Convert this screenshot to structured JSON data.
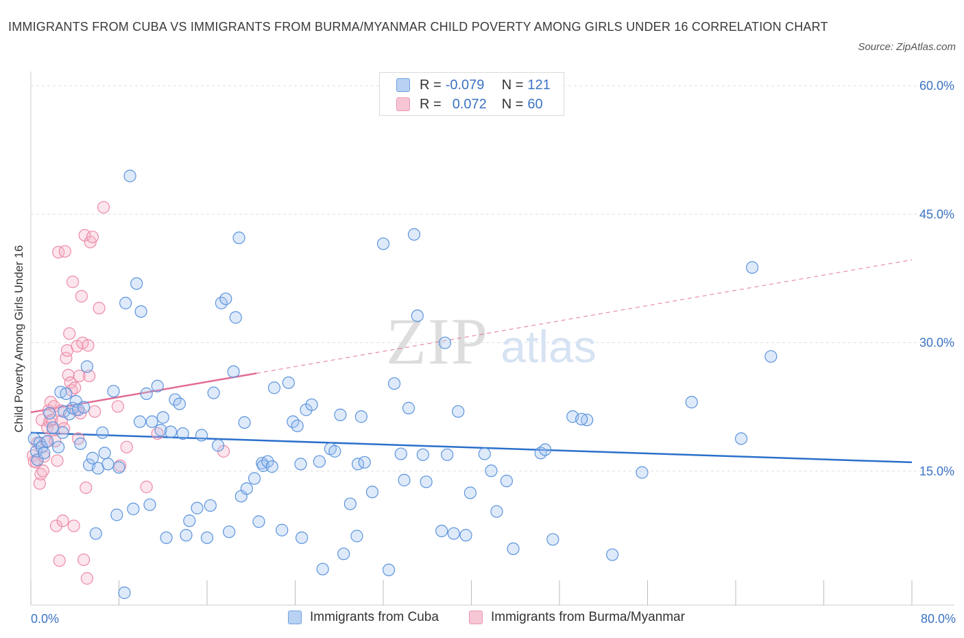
{
  "title": "IMMIGRANTS FROM CUBA VS IMMIGRANTS FROM BURMA/MYANMAR CHILD POVERTY AMONG GIRLS UNDER 16 CORRELATION CHART",
  "source": "Source: ZipAtlas.com",
  "watermark": {
    "zip": "ZIP",
    "atlas": "atlas"
  },
  "legend": {
    "r_label": "R =",
    "n_label": "N =",
    "series": [
      {
        "r": "-0.079",
        "n": "121"
      },
      {
        "r": "0.072",
        "n": "60"
      }
    ]
  },
  "chart_data": {
    "type": "scatter",
    "title": "IMMIGRANTS FROM CUBA VS IMMIGRANTS FROM BURMA/MYANMAR CHILD POVERTY AMONG GIRLS UNDER 16 CORRELATION CHART",
    "xlabel": "",
    "ylabel": "Child Poverty Among Girls Under 16",
    "xlim": [
      0,
      80
    ],
    "ylim": [
      0,
      60
    ],
    "x_ticks": [
      0,
      8,
      16,
      24,
      32,
      40,
      48,
      56,
      64,
      72,
      80
    ],
    "x_tick_labels": [
      "0.0%",
      "80.0%"
    ],
    "y_ticks": [
      15,
      30,
      45,
      60
    ],
    "y_tick_labels": [
      "15.0%",
      "30.0%",
      "45.0%",
      "60.0%"
    ],
    "grid": true,
    "legend_position": "top-center",
    "colors": {
      "cuba": "#5b93dc",
      "burma": "#ec8aa6",
      "cuba_line": "#2a6fcb",
      "burma_line": "#e26b92",
      "axis_text": "#3b73c4"
    },
    "series": [
      {
        "name": "Immigrants from Cuba",
        "r": -0.079,
        "n": 121,
        "trend": {
          "x": [
            0,
            80
          ],
          "y": [
            19.7,
            16.2
          ]
        },
        "points": [
          [
            0.3,
            19.0
          ],
          [
            0.5,
            17.5
          ],
          [
            0.6,
            16.5
          ],
          [
            0.8,
            18.5
          ],
          [
            1.0,
            18.0
          ],
          [
            1.2,
            17.3
          ],
          [
            1.5,
            18.7
          ],
          [
            1.7,
            22.0
          ],
          [
            2.0,
            20.3
          ],
          [
            2.5,
            18.0
          ],
          [
            2.7,
            24.5
          ],
          [
            2.9,
            19.7
          ],
          [
            3.0,
            22.2
          ],
          [
            3.2,
            24.3
          ],
          [
            3.5,
            21.9
          ],
          [
            3.8,
            22.6
          ],
          [
            4.1,
            23.4
          ],
          [
            4.3,
            22.4
          ],
          [
            4.5,
            18.4
          ],
          [
            4.8,
            22.7
          ],
          [
            5.1,
            27.5
          ],
          [
            5.3,
            15.9
          ],
          [
            5.6,
            16.7
          ],
          [
            5.9,
            7.8
          ],
          [
            6.1,
            15.5
          ],
          [
            6.5,
            19.7
          ],
          [
            6.7,
            17.3
          ],
          [
            7.0,
            16.0
          ],
          [
            7.5,
            24.6
          ],
          [
            7.8,
            10.0
          ],
          [
            8.0,
            15.6
          ],
          [
            8.5,
            0.8
          ],
          [
            8.6,
            35.0
          ],
          [
            9.0,
            50.0
          ],
          [
            9.3,
            10.7
          ],
          [
            9.6,
            37.3
          ],
          [
            9.9,
            21.0
          ],
          [
            10.0,
            34.0
          ],
          [
            10.5,
            24.3
          ],
          [
            10.8,
            11.2
          ],
          [
            11.0,
            21.0
          ],
          [
            11.5,
            25.2
          ],
          [
            11.8,
            20.0
          ],
          [
            12.0,
            21.5
          ],
          [
            12.3,
            7.3
          ],
          [
            12.7,
            19.8
          ],
          [
            13.1,
            23.6
          ],
          [
            13.5,
            23.1
          ],
          [
            13.8,
            19.6
          ],
          [
            14.1,
            7.6
          ],
          [
            14.4,
            9.3
          ],
          [
            15.1,
            10.8
          ],
          [
            15.5,
            19.4
          ],
          [
            16.0,
            7.3
          ],
          [
            16.3,
            11.1
          ],
          [
            16.6,
            24.4
          ],
          [
            17.0,
            18.2
          ],
          [
            17.3,
            35.0
          ],
          [
            17.7,
            35.5
          ],
          [
            18.0,
            8.0
          ],
          [
            18.4,
            26.9
          ],
          [
            18.6,
            33.3
          ],
          [
            18.9,
            42.7
          ],
          [
            19.1,
            12.2
          ],
          [
            19.4,
            20.9
          ],
          [
            19.6,
            13.1
          ],
          [
            20.3,
            14.3
          ],
          [
            20.7,
            9.2
          ],
          [
            21.0,
            16.1
          ],
          [
            21.1,
            15.8
          ],
          [
            21.5,
            16.3
          ],
          [
            21.9,
            15.7
          ],
          [
            22.1,
            25.0
          ],
          [
            22.8,
            8.2
          ],
          [
            23.4,
            25.6
          ],
          [
            23.8,
            21.0
          ],
          [
            24.2,
            20.5
          ],
          [
            24.5,
            16.0
          ],
          [
            24.6,
            7.3
          ],
          [
            25.0,
            22.4
          ],
          [
            25.5,
            23.0
          ],
          [
            26.2,
            16.3
          ],
          [
            26.5,
            3.6
          ],
          [
            27.2,
            17.8
          ],
          [
            27.6,
            17.5
          ],
          [
            28.1,
            21.8
          ],
          [
            28.4,
            5.4
          ],
          [
            29.0,
            11.3
          ],
          [
            29.6,
            7.5
          ],
          [
            29.7,
            16.0
          ],
          [
            30.0,
            21.6
          ],
          [
            30.3,
            16.2
          ],
          [
            31.0,
            12.7
          ],
          [
            32.0,
            42.0
          ],
          [
            32.5,
            3.5
          ],
          [
            33.0,
            25.5
          ],
          [
            33.6,
            17.2
          ],
          [
            33.9,
            14.1
          ],
          [
            34.3,
            22.6
          ],
          [
            34.8,
            43.1
          ],
          [
            35.1,
            33.5
          ],
          [
            35.6,
            17.1
          ],
          [
            35.9,
            13.9
          ],
          [
            37.3,
            8.1
          ],
          [
            37.6,
            30.3
          ],
          [
            37.8,
            17.1
          ],
          [
            38.4,
            7.8
          ],
          [
            38.8,
            22.2
          ],
          [
            39.5,
            7.6
          ],
          [
            39.9,
            12.6
          ],
          [
            41.2,
            17.2
          ],
          [
            41.8,
            15.2
          ],
          [
            42.3,
            10.4
          ],
          [
            43.2,
            14.0
          ],
          [
            43.8,
            6.0
          ],
          [
            46.3,
            17.3
          ],
          [
            46.7,
            17.7
          ],
          [
            47.4,
            7.1
          ],
          [
            49.2,
            21.6
          ],
          [
            50.5,
            21.2
          ],
          [
            52.8,
            5.3
          ],
          [
            55.5,
            15.0
          ],
          [
            60.0,
            23.3
          ],
          [
            64.5,
            19.0
          ],
          [
            65.5,
            39.2
          ],
          [
            67.2,
            28.7
          ],
          [
            50.0,
            21.3
          ]
        ]
      },
      {
        "name": "Immigrants from Burma/Myanmar",
        "r": 0.072,
        "n": 60,
        "trend": {
          "x": [
            0,
            80
          ],
          "y": [
            22.1,
            40.1
          ]
        },
        "points": [
          [
            0.2,
            17.0
          ],
          [
            0.3,
            16.3
          ],
          [
            0.5,
            16.2
          ],
          [
            0.6,
            18.5
          ],
          [
            0.8,
            13.7
          ],
          [
            0.9,
            14.8
          ],
          [
            1.0,
            21.2
          ],
          [
            1.1,
            15.2
          ],
          [
            1.2,
            16.9
          ],
          [
            1.4,
            18.6
          ],
          [
            1.5,
            20.3
          ],
          [
            1.6,
            22.3
          ],
          [
            1.7,
            21.0
          ],
          [
            1.8,
            23.3
          ],
          [
            1.9,
            21.2
          ],
          [
            2.0,
            20.0
          ],
          [
            2.1,
            22.8
          ],
          [
            2.2,
            18.7
          ],
          [
            2.3,
            8.7
          ],
          [
            2.4,
            16.4
          ],
          [
            2.5,
            41.0
          ],
          [
            2.6,
            4.6
          ],
          [
            2.7,
            22.3
          ],
          [
            2.8,
            21.1
          ],
          [
            2.9,
            9.3
          ],
          [
            3.0,
            20.2
          ],
          [
            3.1,
            41.1
          ],
          [
            3.2,
            28.5
          ],
          [
            3.3,
            29.4
          ],
          [
            3.4,
            26.5
          ],
          [
            3.5,
            31.4
          ],
          [
            3.6,
            25.6
          ],
          [
            3.7,
            24.7
          ],
          [
            3.8,
            37.5
          ],
          [
            3.9,
            8.7
          ],
          [
            4.0,
            25.0
          ],
          [
            4.1,
            22.4
          ],
          [
            4.2,
            29.9
          ],
          [
            4.3,
            19.0
          ],
          [
            4.4,
            26.4
          ],
          [
            4.5,
            22.0
          ],
          [
            4.6,
            35.8
          ],
          [
            4.7,
            30.3
          ],
          [
            4.8,
            4.7
          ],
          [
            4.9,
            43.0
          ],
          [
            5.0,
            13.2
          ],
          [
            5.1,
            2.5
          ],
          [
            5.2,
            30.0
          ],
          [
            5.3,
            26.4
          ],
          [
            5.4,
            42.2
          ],
          [
            5.6,
            42.8
          ],
          [
            5.8,
            22.2
          ],
          [
            6.2,
            34.4
          ],
          [
            6.6,
            46.3
          ],
          [
            7.9,
            22.8
          ],
          [
            8.1,
            15.8
          ],
          [
            8.7,
            18.0
          ],
          [
            10.5,
            13.3
          ],
          [
            11.5,
            19.6
          ],
          [
            17.5,
            17.5
          ]
        ]
      }
    ]
  },
  "bottom_legend": [
    "Immigrants from Cuba",
    "Immigrants from Burma/Myanmar"
  ]
}
